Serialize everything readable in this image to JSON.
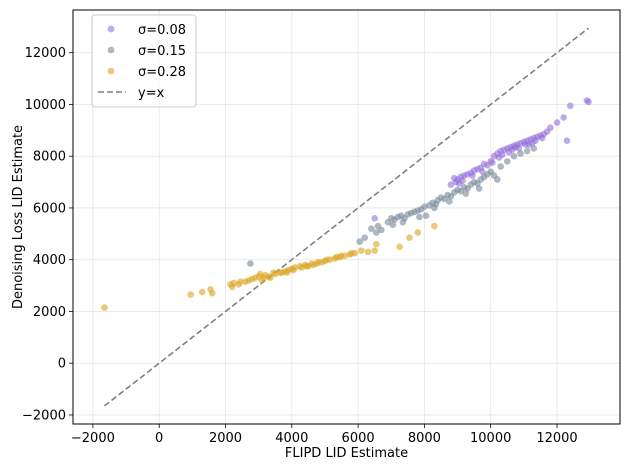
{
  "chart_data": {
    "type": "scatter",
    "title": "",
    "xlabel": "FLIPD LID Estimate",
    "ylabel": "Denoising Loss LID Estimate",
    "xlim": [
      -2600,
      13900
    ],
    "ylim": [
      -2350,
      13650
    ],
    "xticks": [
      -2000,
      0,
      2000,
      4000,
      6000,
      8000,
      10000,
      12000
    ],
    "yticks": [
      -2000,
      0,
      2000,
      4000,
      6000,
      8000,
      10000,
      12000
    ],
    "xtick_labels": [
      "−2000",
      "0",
      "2000",
      "4000",
      "6000",
      "8000",
      "10000",
      "12000"
    ],
    "ytick_labels": [
      "−2000",
      "0",
      "2000",
      "4000",
      "6000",
      "8000",
      "10000",
      "12000"
    ],
    "grid": true,
    "legend_position": "top-left",
    "series": [
      {
        "name": "σ=0.08",
        "color": "#9370db",
        "points": [
          [
            6500,
            5600
          ],
          [
            8800,
            6900
          ],
          [
            8950,
            7000
          ],
          [
            9000,
            7100
          ],
          [
            9100,
            7200
          ],
          [
            9200,
            7250
          ],
          [
            9300,
            7300
          ],
          [
            9400,
            7350
          ],
          [
            9500,
            7450
          ],
          [
            9600,
            7500
          ],
          [
            9700,
            7550
          ],
          [
            9800,
            7700
          ],
          [
            9900,
            7650
          ],
          [
            10000,
            7800
          ],
          [
            10100,
            8000
          ],
          [
            10200,
            8100
          ],
          [
            10300,
            8200
          ],
          [
            10350,
            8050
          ],
          [
            10400,
            8250
          ],
          [
            10500,
            8300
          ],
          [
            10550,
            8150
          ],
          [
            10600,
            8350
          ],
          [
            10700,
            8400
          ],
          [
            10800,
            8450
          ],
          [
            10850,
            8300
          ],
          [
            10900,
            8500
          ],
          [
            11000,
            8550
          ],
          [
            11050,
            8450
          ],
          [
            11100,
            8600
          ],
          [
            11200,
            8650
          ],
          [
            11300,
            8700
          ],
          [
            11350,
            8600
          ],
          [
            11400,
            8750
          ],
          [
            11500,
            8800
          ],
          [
            11600,
            8850
          ],
          [
            11700,
            8950
          ],
          [
            11800,
            9100
          ],
          [
            12000,
            9300
          ],
          [
            12200,
            9500
          ],
          [
            12300,
            8600
          ],
          [
            12400,
            9950
          ],
          [
            12900,
            10150
          ],
          [
            12950,
            10100
          ],
          [
            9150,
            7050
          ],
          [
            9750,
            7400
          ],
          [
            10250,
            7950
          ],
          [
            10650,
            8250
          ],
          [
            11250,
            8500
          ],
          [
            11550,
            8700
          ],
          [
            8900,
            7150
          ],
          [
            9050,
            6950
          ],
          [
            9450,
            7250
          ],
          [
            10050,
            7750
          ],
          [
            10750,
            8350
          ],
          [
            11150,
            8450
          ]
        ]
      },
      {
        "name": "σ=0.15",
        "color": "#778899",
        "points": [
          [
            2750,
            3850
          ],
          [
            6050,
            4700
          ],
          [
            6200,
            4850
          ],
          [
            6400,
            5200
          ],
          [
            6600,
            5300
          ],
          [
            6700,
            5150
          ],
          [
            6900,
            5450
          ],
          [
            7000,
            5600
          ],
          [
            7100,
            5550
          ],
          [
            7200,
            5650
          ],
          [
            7300,
            5700
          ],
          [
            7400,
            5600
          ],
          [
            7500,
            5750
          ],
          [
            7600,
            5800
          ],
          [
            7700,
            5850
          ],
          [
            7800,
            5900
          ],
          [
            7900,
            5950
          ],
          [
            8000,
            6050
          ],
          [
            8050,
            5700
          ],
          [
            8150,
            6100
          ],
          [
            8250,
            6200
          ],
          [
            8300,
            6000
          ],
          [
            8400,
            6300
          ],
          [
            8500,
            6400
          ],
          [
            8600,
            6350
          ],
          [
            8700,
            6500
          ],
          [
            8800,
            6450
          ],
          [
            8900,
            6600
          ],
          [
            9000,
            6700
          ],
          [
            9100,
            6650
          ],
          [
            9200,
            6800
          ],
          [
            9300,
            6750
          ],
          [
            9400,
            6900
          ],
          [
            9500,
            7000
          ],
          [
            9600,
            6950
          ],
          [
            9700,
            7100
          ],
          [
            9800,
            7200
          ],
          [
            9900,
            7300
          ],
          [
            10000,
            7400
          ],
          [
            10100,
            7250
          ],
          [
            10300,
            7600
          ],
          [
            10500,
            7800
          ],
          [
            10700,
            8000
          ],
          [
            10900,
            8100
          ],
          [
            11100,
            8200
          ],
          [
            11300,
            8300
          ],
          [
            7350,
            5450
          ],
          [
            7850,
            5650
          ],
          [
            8350,
            6150
          ],
          [
            9250,
            6550
          ],
          [
            9650,
            6750
          ],
          [
            10200,
            7100
          ],
          [
            6550,
            5050
          ],
          [
            7050,
            5350
          ],
          [
            8750,
            6250
          ]
        ]
      },
      {
        "name": "σ=0.28",
        "color": "#daa520",
        "points": [
          [
            -1650,
            2150
          ],
          [
            950,
            2650
          ],
          [
            1300,
            2750
          ],
          [
            1550,
            2850
          ],
          [
            1600,
            2700
          ],
          [
            2150,
            3050
          ],
          [
            2250,
            3100
          ],
          [
            2400,
            3050
          ],
          [
            2600,
            3150
          ],
          [
            2800,
            3250
          ],
          [
            2900,
            3300
          ],
          [
            3000,
            3350
          ],
          [
            3100,
            3200
          ],
          [
            3200,
            3400
          ],
          [
            3350,
            3300
          ],
          [
            3500,
            3450
          ],
          [
            3650,
            3500
          ],
          [
            3800,
            3550
          ],
          [
            3900,
            3600
          ],
          [
            4000,
            3650
          ],
          [
            4100,
            3700
          ],
          [
            4250,
            3750
          ],
          [
            4400,
            3800
          ],
          [
            4500,
            3750
          ],
          [
            4600,
            3850
          ],
          [
            4750,
            3850
          ],
          [
            4900,
            3900
          ],
          [
            5000,
            3950
          ],
          [
            5150,
            4000
          ],
          [
            5300,
            4050
          ],
          [
            5450,
            4100
          ],
          [
            5600,
            4150
          ],
          [
            5750,
            4200
          ],
          [
            5900,
            4250
          ],
          [
            6100,
            4350
          ],
          [
            6300,
            4300
          ],
          [
            6500,
            4350
          ],
          [
            6550,
            4600
          ],
          [
            7250,
            4500
          ],
          [
            7550,
            4850
          ],
          [
            7800,
            5050
          ],
          [
            8300,
            5300
          ],
          [
            2200,
            2950
          ],
          [
            2700,
            3200
          ],
          [
            3300,
            3350
          ],
          [
            3700,
            3500
          ],
          [
            4300,
            3700
          ],
          [
            4800,
            3900
          ],
          [
            5500,
            4150
          ],
          [
            3050,
            3450
          ],
          [
            2450,
            3150
          ],
          [
            3450,
            3500
          ],
          [
            4050,
            3600
          ],
          [
            4650,
            3800
          ],
          [
            5350,
            4100
          ],
          [
            5800,
            4250
          ],
          [
            3150,
            3300
          ],
          [
            3850,
            3500
          ],
          [
            4450,
            3750
          ],
          [
            5050,
            4000
          ]
        ]
      }
    ],
    "reference_line": {
      "name": "y=x",
      "color": "#808080",
      "style": "dashed",
      "x": [
        -1650,
        12950
      ],
      "y": [
        -1650,
        12950
      ]
    }
  }
}
